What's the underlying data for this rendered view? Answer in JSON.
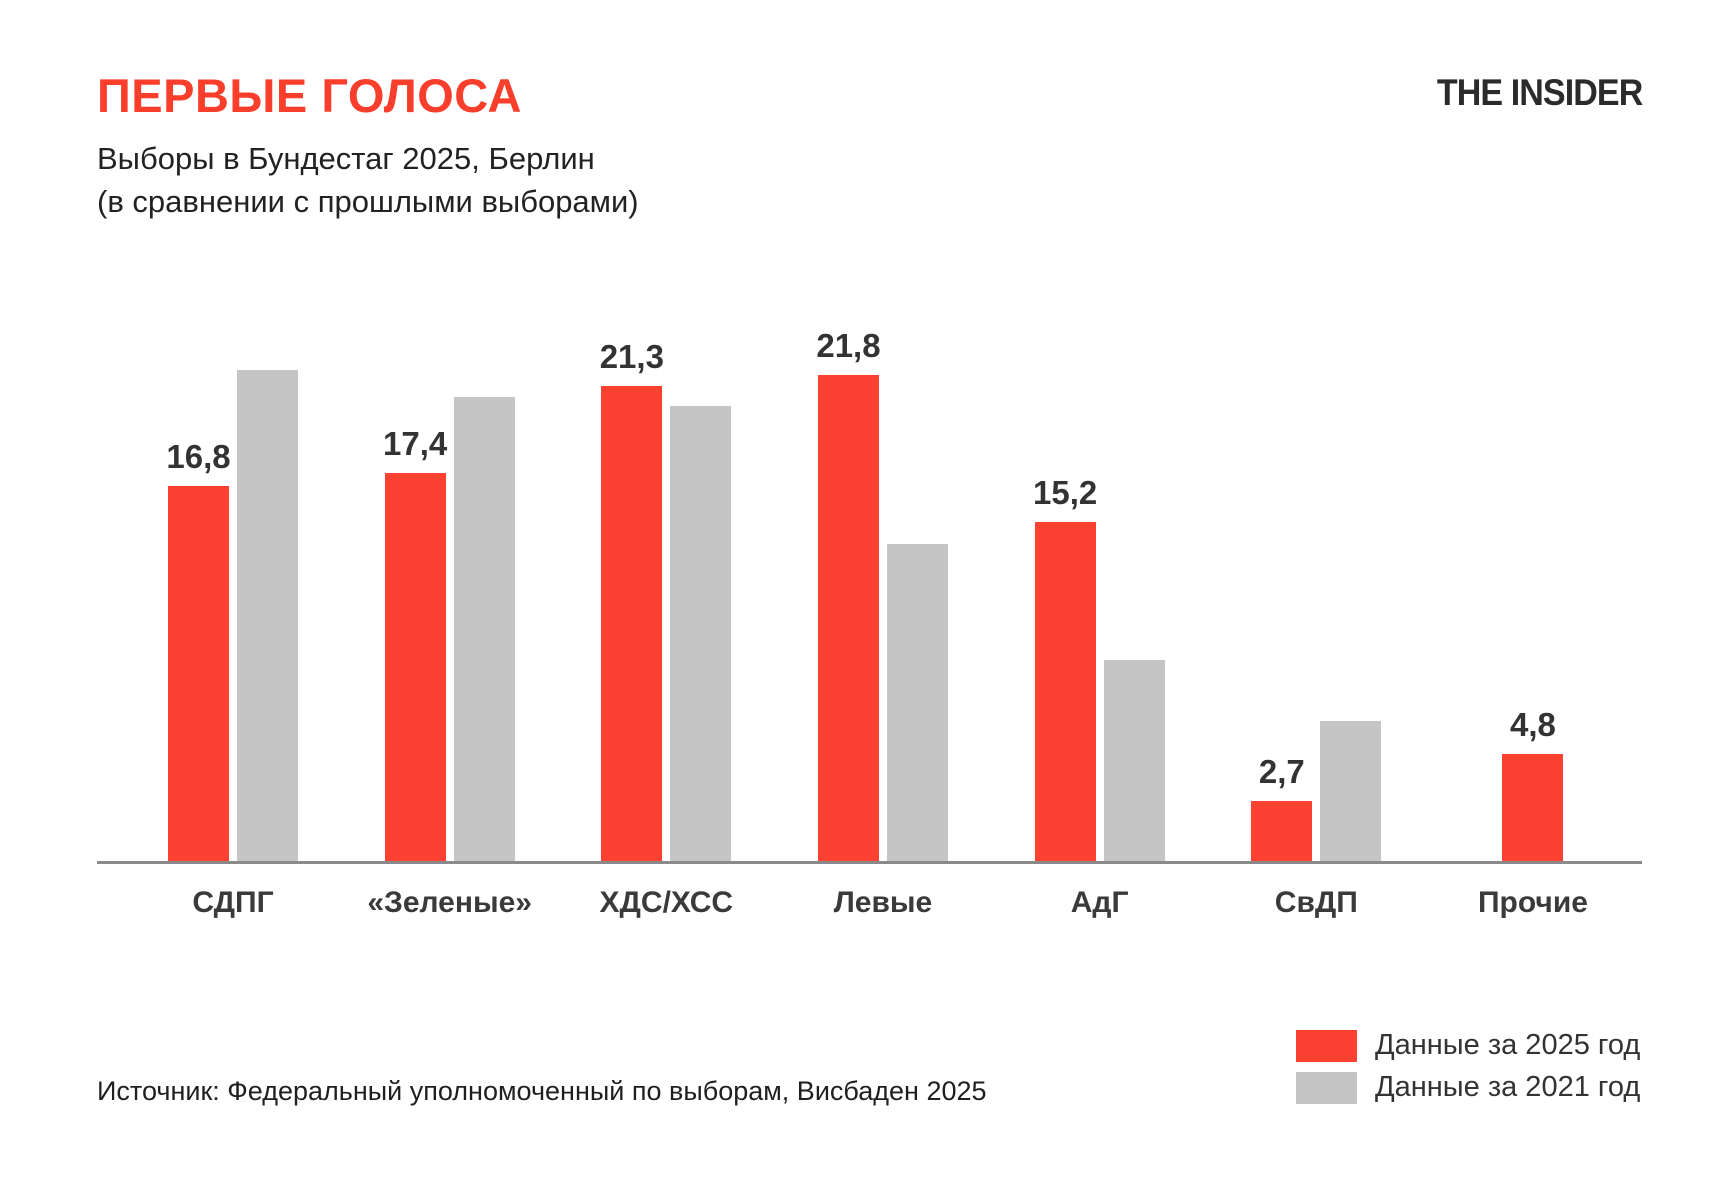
{
  "brand": "THE INSIDER",
  "header": {
    "title": "ПЕРВЫЕ ГОЛОСА",
    "subtitle_line1": "Выборы в Бундестаг 2025, Берлин",
    "subtitle_line2": "(в сравнении с прошлыми выборами)"
  },
  "source": "Источник: Федеральный уполномоченный по выборам, Висбаден 2025",
  "colors": {
    "accent_red": "#F93E2C",
    "bar_2025": "#FA4132",
    "bar_2021": "#C5C5C5",
    "axis_line": "#8a8a8a",
    "text_dark": "#333333"
  },
  "legend": {
    "position": "bottom-right",
    "items": [
      {
        "label": "Данные за 2025 год",
        "color": "#FA4132"
      },
      {
        "label": "Данные за 2021 год",
        "color": "#C5C5C5"
      }
    ]
  },
  "chart_data": {
    "type": "bar",
    "title": "ПЕРВЫЕ ГОЛОСА",
    "subtitle": "Выборы в Бундестаг 2025, Берлин (в сравнении с прошлыми выборами)",
    "categories": [
      "СДПГ",
      "«Зеленые»",
      "ХДС/ХСС",
      "Левые",
      "АдГ",
      "СвДП",
      "Прочие"
    ],
    "series": [
      {
        "name": "Данные за 2025 год",
        "color": "#FA4132",
        "values": [
          16.8,
          17.4,
          21.3,
          21.8,
          15.2,
          2.7,
          4.8
        ],
        "data_labels_visible": true
      },
      {
        "name": "Данные за 2021 год",
        "color": "#C5C5C5",
        "values": [
          22.0,
          20.8,
          20.4,
          14.2,
          9.0,
          6.3,
          null
        ],
        "data_labels_visible": false
      }
    ],
    "value_label_decimal_separator": ",",
    "xlabel": "",
    "ylabel": "",
    "ylim": [
      0,
      24
    ],
    "y_axis_visible": false,
    "grid": false,
    "legend_position": "bottom-right"
  }
}
